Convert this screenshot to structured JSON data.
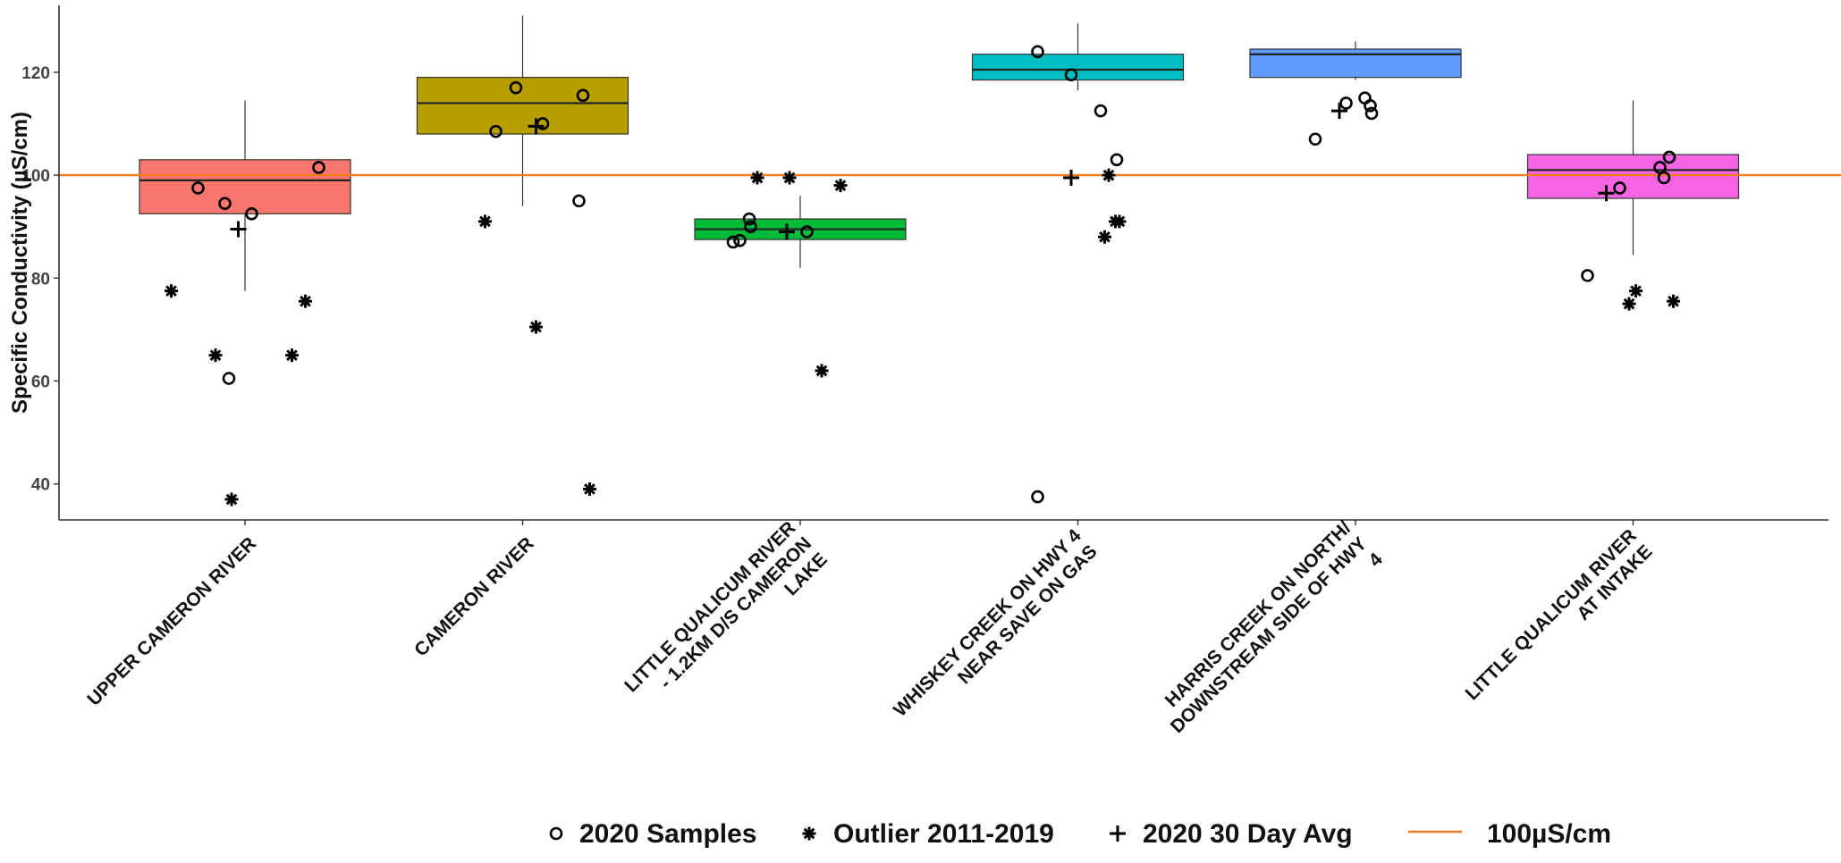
{
  "chart_data": {
    "type": "box",
    "title": "",
    "xlabel": "",
    "ylabel": "Specific Conductivity (µS/cm)",
    "ylim": [
      33,
      133
    ],
    "yticks": [
      40,
      60,
      80,
      100,
      120
    ],
    "grid": false,
    "reference_line": {
      "value": 100,
      "color": "#f47c20",
      "label": "100µS/cm"
    },
    "legend": {
      "placement": "bottom",
      "items": [
        {
          "symbol": "circle",
          "label": "2020 Samples"
        },
        {
          "symbol": "asterisk",
          "label": "Outlier 2011-2019"
        },
        {
          "symbol": "plus",
          "label": "2020 30 Day Avg"
        },
        {
          "symbol": "line",
          "label": "100µS/cm"
        }
      ]
    },
    "categories": [
      {
        "label_lines": [
          "UPPER CAMERON RIVER"
        ],
        "color": "#f8766d",
        "box": {
          "q1": 92.5,
          "median": 99,
          "q3": 103,
          "whisker_low": 77.5,
          "whisker_high": 114.5
        },
        "samples": [
          [
            -0.35,
            97.5
          ],
          [
            -0.15,
            94.5
          ],
          [
            0.05,
            92.5
          ],
          [
            -0.12,
            60.5
          ],
          [
            0.55,
            101.5
          ]
        ],
        "outliers": [
          [
            -0.55,
            77.5
          ],
          [
            -0.22,
            65
          ],
          [
            -0.1,
            37
          ],
          [
            0.35,
            65
          ],
          [
            0.45,
            75.5
          ]
        ],
        "avg": [
          -0.05,
          89.5
        ]
      },
      {
        "label_lines": [
          "CAMERON RIVER"
        ],
        "color": "#b79f00",
        "box": {
          "q1": 108,
          "median": 114,
          "q3": 119,
          "whisker_low": 94,
          "whisker_high": 131
        },
        "samples": [
          [
            -0.2,
            108.5
          ],
          [
            -0.05,
            117
          ],
          [
            0.15,
            110
          ],
          [
            0.45,
            115.5
          ],
          [
            0.42,
            95
          ]
        ],
        "outliers": [
          [
            -0.28,
            91
          ],
          [
            0.1,
            70.5
          ],
          [
            0.5,
            39
          ]
        ],
        "avg": [
          0.1,
          109.5
        ]
      },
      {
        "label_lines": [
          "LITTLE QUALICUM RIVER",
          "- 1.2KM D/S CAMERON",
          "LAKE"
        ],
        "color": "#00ba38",
        "box": {
          "q1": 87.5,
          "median": 89.5,
          "q3": 91.5,
          "whisker_low": 82,
          "whisker_high": 96
        },
        "samples": [
          [
            -0.5,
            87
          ],
          [
            -0.45,
            87.3
          ],
          [
            -0.38,
            91.5
          ],
          [
            -0.37,
            90
          ],
          [
            0.05,
            89
          ]
        ],
        "outliers": [
          [
            -0.32,
            99.5
          ],
          [
            -0.08,
            99.5
          ],
          [
            0.3,
            98
          ],
          [
            0.16,
            62
          ]
        ],
        "avg": [
          -0.1,
          89
        ]
      },
      {
        "label_lines": [
          "WHISKEY CREEK ON HWY 4",
          "NEAR SAVE ON GAS"
        ],
        "color": "#00bfc4",
        "box": {
          "q1": 118.5,
          "median": 120.5,
          "q3": 123.5,
          "whisker_low": 116.5,
          "whisker_high": 129.5
        },
        "samples": [
          [
            -0.3,
            124
          ],
          [
            -0.05,
            119.5
          ],
          [
            0.17,
            112.5
          ],
          [
            0.29,
            103
          ],
          [
            -0.3,
            37.5
          ]
        ],
        "outliers": [
          [
            0.23,
            100
          ],
          [
            0.2,
            88
          ],
          [
            0.31,
            91
          ],
          [
            0.28,
            91
          ]
        ],
        "avg": [
          -0.05,
          99.5
        ]
      },
      {
        "label_lines": [
          "HARRIS CREEK ON NORTH/",
          "DOWNSTREAM SIDE OF HWY",
          "4"
        ],
        "color": "#619cff",
        "box": {
          "q1": 119,
          "median": 123.5,
          "q3": 124.5,
          "whisker_low": 118.5,
          "whisker_high": 126
        },
        "samples": [
          [
            -0.3,
            107
          ],
          [
            -0.07,
            114
          ],
          [
            0.07,
            115
          ],
          [
            0.11,
            113.5
          ],
          [
            0.12,
            112
          ]
        ],
        "outliers": [],
        "avg": [
          -0.12,
          112.5
        ]
      },
      {
        "label_lines": [
          "LITTLE QUALICUM RIVER",
          "AT INTAKE"
        ],
        "color": "#f564e3",
        "box": {
          "q1": 95.5,
          "median": 101,
          "q3": 104,
          "whisker_low": 84.5,
          "whisker_high": 114.5
        },
        "samples": [
          [
            -0.34,
            80.5
          ],
          [
            -0.1,
            97.5
          ],
          [
            0.2,
            101.5
          ],
          [
            0.23,
            99.5
          ],
          [
            0.27,
            103.5
          ]
        ],
        "outliers": [
          [
            -0.03,
            75
          ],
          [
            0.02,
            77.5
          ],
          [
            0.3,
            75.5
          ]
        ],
        "avg": [
          -0.2,
          96.5
        ]
      }
    ]
  }
}
